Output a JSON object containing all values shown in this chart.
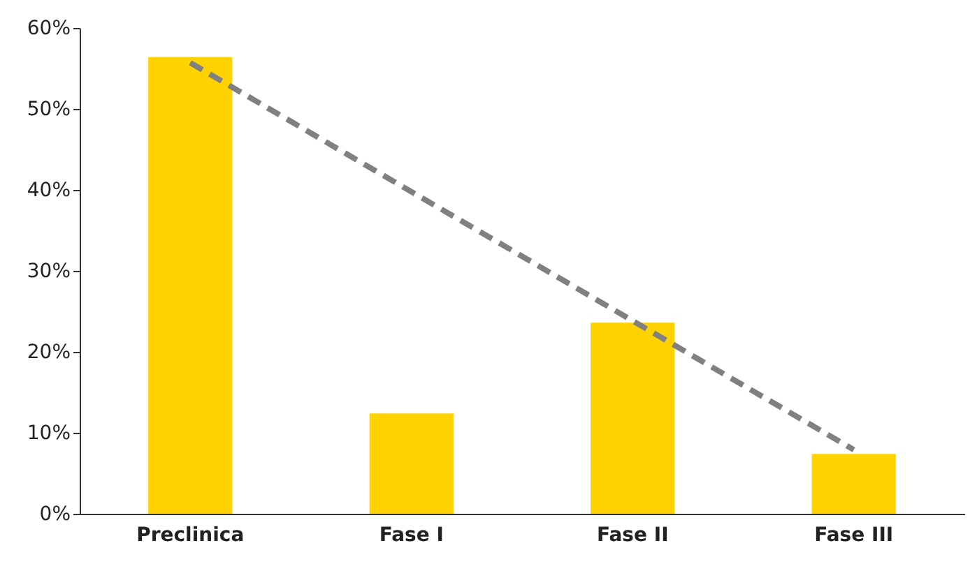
{
  "chart_data": {
    "type": "bar",
    "categories": [
      "Preclinica",
      "Fase I",
      "Fase II",
      "Fase III"
    ],
    "series": [
      {
        "color": "#ffd200",
        "values": [
          56.4,
          12.4,
          23.6,
          7.4
        ]
      },
      {
        "type": "line",
        "color": "#808080",
        "line_style": "dashed",
        "x": [
          "Preclinica",
          "Fase III"
        ],
        "values": [
          55.7,
          7.9
        ]
      }
    ],
    "ylim": [
      0,
      60
    ],
    "yticks": [
      {
        "value": 0,
        "label": "0%"
      },
      {
        "value": 10,
        "label": "10%"
      },
      {
        "value": 20,
        "label": "20%"
      },
      {
        "value": 30,
        "label": "30%"
      },
      {
        "value": 40,
        "label": "40%"
      },
      {
        "value": 50,
        "label": "50%"
      },
      {
        "value": 60,
        "label": "60%"
      }
    ],
    "grid": false
  }
}
